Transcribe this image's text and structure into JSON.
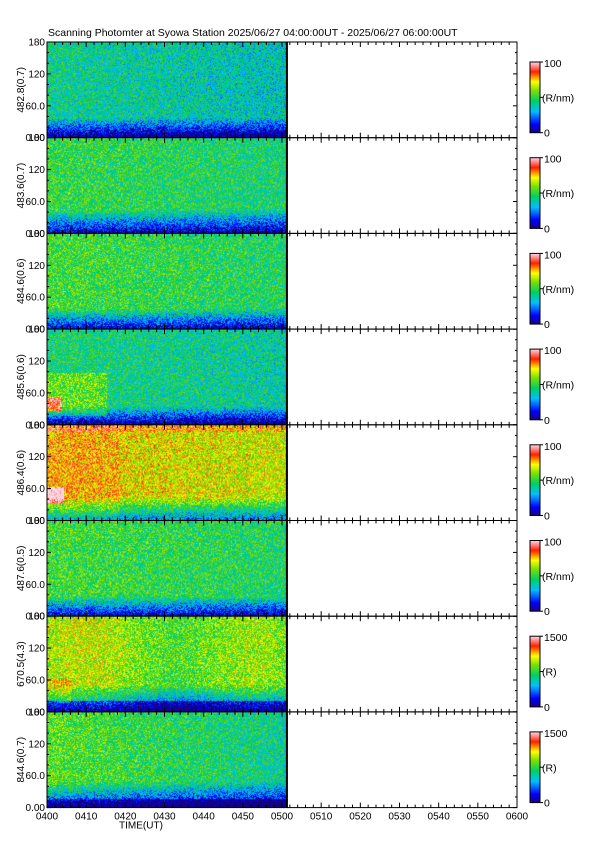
{
  "title": "Scanning Photomter at Syowa Station  2025/06/27 04:00:00UT - 2025/06/27 06:00:00UT",
  "chart_data": {
    "type": "heatmap",
    "xlabel": "TIME(UT)",
    "x_tick_labels": [
      "0400",
      "0410",
      "0420",
      "0430",
      "0440",
      "0450",
      "0500",
      "0510",
      "0520",
      "0530",
      "0540",
      "0550",
      "0600"
    ],
    "x_range_minutes": [
      0,
      120
    ],
    "data_end_minutes": 61,
    "y_tick_labels": [
      "0.00",
      "60.0",
      "120",
      "180"
    ],
    "y_range": [
      0,
      180
    ],
    "panels": [
      {
        "ylabel": "482.8(0.7)",
        "unit": "(R/nm)",
        "cmax": "100",
        "cmin": "0",
        "level": 0.42,
        "bottom_band": 0.22,
        "hot": 0
      },
      {
        "ylabel": "483.6(0.7)",
        "unit": "(R/nm)",
        "cmax": "100",
        "cmin": "0",
        "level": 0.5,
        "bottom_band": 0.25,
        "hot": 0
      },
      {
        "ylabel": "484.6(0.6)",
        "unit": "(R/nm)",
        "cmax": "100",
        "cmin": "0",
        "level": 0.52,
        "bottom_band": 0.22,
        "hot": 0
      },
      {
        "ylabel": "485.6(0.6)",
        "unit": "(R/nm)",
        "cmax": "100",
        "cmin": "0",
        "level": 0.45,
        "bottom_band": 0.2,
        "hot": 1
      },
      {
        "ylabel": "486.4(0.6)",
        "unit": "(R/nm)",
        "cmax": "100",
        "cmin": "0",
        "level": 0.72,
        "bottom_band": 0.25,
        "hot": 2
      },
      {
        "ylabel": "487.6(0.5)",
        "unit": "(R/nm)",
        "cmax": "100",
        "cmin": "0",
        "level": 0.52,
        "bottom_band": 0.22,
        "hot": 0
      },
      {
        "ylabel": "670.5(4.3)",
        "unit": "(R)",
        "cmax": "1500",
        "cmin": "0",
        "level": 0.62,
        "bottom_band": 0.3,
        "hot": 3
      },
      {
        "ylabel": "844.6(0.7)",
        "unit": "(R)",
        "cmax": "1500",
        "cmin": "0",
        "level": 0.55,
        "bottom_band": 0.28,
        "hot": 4
      }
    ]
  }
}
